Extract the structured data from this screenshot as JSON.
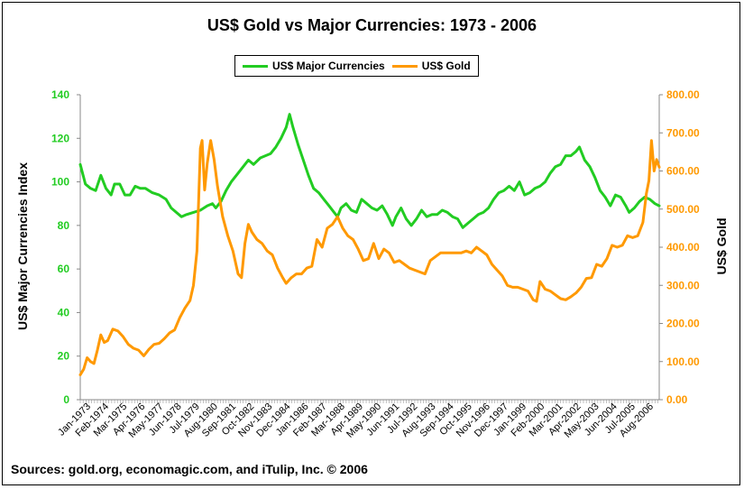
{
  "chart_data": {
    "type": "line",
    "title": "US$ Gold vs Major Currencies: 1973 - 2006",
    "source": "Sources: gold.org, economagic.com, and iTulip, Inc. © 2006",
    "y_left": {
      "label": "US$ Major Currencies Index",
      "range": [
        0,
        140
      ],
      "ticks": [
        "0",
        "20",
        "40",
        "60",
        "80",
        "100",
        "120",
        "140"
      ],
      "color": "#22cc22"
    },
    "y_right": {
      "label": "US$ Gold",
      "range": [
        0,
        800
      ],
      "ticks": [
        "0.00",
        "100.00",
        "200.00",
        "300.00",
        "400.00",
        "500.00",
        "600.00",
        "700.00",
        "800.00"
      ],
      "color": "#ff9900"
    },
    "x_ticks": [
      "Jan-1973",
      "Feb-1974",
      "Mar-1975",
      "Apr-1976",
      "May-1977",
      "Jun-1978",
      "Jul-1979",
      "Aug-1980",
      "Sep-1981",
      "Oct-1982",
      "Nov-1983",
      "Dec-1984",
      "Jan-1986",
      "Feb-1987",
      "Mar-1988",
      "Apr-1989",
      "May-1990",
      "Jun-1991",
      "Jul-1992",
      "Aug-1993",
      "Sep-1994",
      "Oct-1995",
      "Nov-1996",
      "Dec-1997",
      "Jan-1999",
      "Feb-2000",
      "Mar-2001",
      "Apr-2002",
      "May-2003",
      "Jun-2004",
      "Jul-2005",
      "Aug-2006"
    ],
    "x_range": [
      1973.0,
      2006.75
    ],
    "grid": false,
    "legend": "top-center",
    "series": [
      {
        "name": "US$ Major Currencies",
        "axis": "left",
        "color": "#22cc22",
        "points": [
          [
            1973.0,
            108
          ],
          [
            1973.3,
            99
          ],
          [
            1973.6,
            97
          ],
          [
            1973.9,
            96
          ],
          [
            1974.2,
            103
          ],
          [
            1974.5,
            97
          ],
          [
            1974.8,
            94
          ],
          [
            1975.0,
            99
          ],
          [
            1975.3,
            99
          ],
          [
            1975.6,
            94
          ],
          [
            1975.9,
            94
          ],
          [
            1976.2,
            98
          ],
          [
            1976.5,
            97
          ],
          [
            1976.8,
            97
          ],
          [
            1977.2,
            95
          ],
          [
            1977.6,
            94
          ],
          [
            1978.0,
            92
          ],
          [
            1978.3,
            88
          ],
          [
            1978.6,
            86
          ],
          [
            1978.9,
            84
          ],
          [
            1979.2,
            85
          ],
          [
            1979.6,
            86
          ],
          [
            1980.0,
            87
          ],
          [
            1980.4,
            89
          ],
          [
            1980.7,
            90
          ],
          [
            1980.9,
            88
          ],
          [
            1981.2,
            91
          ],
          [
            1981.5,
            96
          ],
          [
            1981.8,
            100
          ],
          [
            1982.2,
            104
          ],
          [
            1982.5,
            107
          ],
          [
            1982.8,
            110
          ],
          [
            1983.1,
            108
          ],
          [
            1983.5,
            111
          ],
          [
            1983.8,
            112
          ],
          [
            1984.1,
            113
          ],
          [
            1984.4,
            116
          ],
          [
            1984.7,
            120
          ],
          [
            1985.0,
            125
          ],
          [
            1985.2,
            131
          ],
          [
            1985.4,
            125
          ],
          [
            1985.7,
            117
          ],
          [
            1986.0,
            110
          ],
          [
            1986.3,
            103
          ],
          [
            1986.6,
            97
          ],
          [
            1986.9,
            95
          ],
          [
            1987.2,
            92
          ],
          [
            1987.5,
            89
          ],
          [
            1987.8,
            86
          ],
          [
            1988.0,
            84
          ],
          [
            1988.2,
            88
          ],
          [
            1988.5,
            90
          ],
          [
            1988.8,
            87
          ],
          [
            1989.1,
            86
          ],
          [
            1989.4,
            92
          ],
          [
            1989.7,
            90
          ],
          [
            1990.0,
            88
          ],
          [
            1990.3,
            87
          ],
          [
            1990.6,
            89
          ],
          [
            1990.9,
            85
          ],
          [
            1991.2,
            80
          ],
          [
            1991.4,
            84
          ],
          [
            1991.7,
            88
          ],
          [
            1992.0,
            83
          ],
          [
            1992.3,
            80
          ],
          [
            1992.6,
            83
          ],
          [
            1992.9,
            87
          ],
          [
            1993.2,
            84
          ],
          [
            1993.5,
            85
          ],
          [
            1993.8,
            85
          ],
          [
            1994.1,
            87
          ],
          [
            1994.4,
            86
          ],
          [
            1994.7,
            84
          ],
          [
            1995.0,
            83
          ],
          [
            1995.3,
            79
          ],
          [
            1995.6,
            81
          ],
          [
            1995.9,
            83
          ],
          [
            1996.2,
            85
          ],
          [
            1996.5,
            86
          ],
          [
            1996.8,
            88
          ],
          [
            1997.1,
            92
          ],
          [
            1997.4,
            95
          ],
          [
            1997.7,
            96
          ],
          [
            1998.0,
            98
          ],
          [
            1998.3,
            96
          ],
          [
            1998.6,
            100
          ],
          [
            1998.9,
            94
          ],
          [
            1999.2,
            95
          ],
          [
            1999.5,
            97
          ],
          [
            1999.8,
            98
          ],
          [
            2000.1,
            100
          ],
          [
            2000.4,
            104
          ],
          [
            2000.7,
            107
          ],
          [
            2001.0,
            108
          ],
          [
            2001.3,
            112
          ],
          [
            2001.6,
            112
          ],
          [
            2001.9,
            114
          ],
          [
            2002.1,
            116
          ],
          [
            2002.4,
            110
          ],
          [
            2002.7,
            107
          ],
          [
            2003.0,
            102
          ],
          [
            2003.3,
            96
          ],
          [
            2003.6,
            93
          ],
          [
            2003.9,
            89
          ],
          [
            2004.2,
            94
          ],
          [
            2004.5,
            93
          ],
          [
            2004.8,
            89
          ],
          [
            2005.0,
            86
          ],
          [
            2005.3,
            88
          ],
          [
            2005.6,
            91
          ],
          [
            2005.9,
            93
          ],
          [
            2006.2,
            92
          ],
          [
            2006.5,
            90
          ],
          [
            2006.75,
            89
          ]
        ]
      },
      {
        "name": "US$ Gold",
        "axis": "right",
        "color": "#ff9900",
        "points": [
          [
            1973.0,
            65
          ],
          [
            1973.2,
            80
          ],
          [
            1973.4,
            110
          ],
          [
            1973.6,
            100
          ],
          [
            1973.8,
            95
          ],
          [
            1974.0,
            130
          ],
          [
            1974.2,
            170
          ],
          [
            1974.4,
            150
          ],
          [
            1974.6,
            155
          ],
          [
            1974.9,
            185
          ],
          [
            1975.2,
            180
          ],
          [
            1975.5,
            165
          ],
          [
            1975.8,
            145
          ],
          [
            1976.1,
            135
          ],
          [
            1976.4,
            130
          ],
          [
            1976.7,
            115
          ],
          [
            1977.0,
            132
          ],
          [
            1977.3,
            145
          ],
          [
            1977.6,
            148
          ],
          [
            1977.9,
            160
          ],
          [
            1978.2,
            175
          ],
          [
            1978.5,
            183
          ],
          [
            1978.8,
            215
          ],
          [
            1979.1,
            240
          ],
          [
            1979.4,
            260
          ],
          [
            1979.6,
            300
          ],
          [
            1979.8,
            390
          ],
          [
            1980.0,
            660
          ],
          [
            1980.1,
            680
          ],
          [
            1980.25,
            550
          ],
          [
            1980.4,
            620
          ],
          [
            1980.6,
            680
          ],
          [
            1980.8,
            630
          ],
          [
            1981.0,
            560
          ],
          [
            1981.3,
            480
          ],
          [
            1981.6,
            430
          ],
          [
            1981.9,
            390
          ],
          [
            1982.2,
            330
          ],
          [
            1982.4,
            320
          ],
          [
            1982.6,
            410
          ],
          [
            1982.8,
            460
          ],
          [
            1983.0,
            440
          ],
          [
            1983.3,
            420
          ],
          [
            1983.6,
            410
          ],
          [
            1983.9,
            390
          ],
          [
            1984.2,
            380
          ],
          [
            1984.5,
            345
          ],
          [
            1984.8,
            320
          ],
          [
            1985.0,
            305
          ],
          [
            1985.3,
            320
          ],
          [
            1985.6,
            330
          ],
          [
            1985.9,
            330
          ],
          [
            1986.2,
            345
          ],
          [
            1986.5,
            350
          ],
          [
            1986.8,
            420
          ],
          [
            1987.1,
            400
          ],
          [
            1987.4,
            450
          ],
          [
            1987.7,
            460
          ],
          [
            1988.0,
            480
          ],
          [
            1988.3,
            450
          ],
          [
            1988.6,
            430
          ],
          [
            1988.9,
            420
          ],
          [
            1989.2,
            395
          ],
          [
            1989.5,
            365
          ],
          [
            1989.8,
            370
          ],
          [
            1990.1,
            410
          ],
          [
            1990.4,
            370
          ],
          [
            1990.7,
            395
          ],
          [
            1991.0,
            385
          ],
          [
            1991.3,
            360
          ],
          [
            1991.6,
            365
          ],
          [
            1991.9,
            355
          ],
          [
            1992.2,
            345
          ],
          [
            1992.5,
            340
          ],
          [
            1992.8,
            335
          ],
          [
            1993.1,
            330
          ],
          [
            1993.4,
            365
          ],
          [
            1993.7,
            375
          ],
          [
            1994.0,
            385
          ],
          [
            1994.3,
            385
          ],
          [
            1994.6,
            385
          ],
          [
            1994.9,
            385
          ],
          [
            1995.2,
            385
          ],
          [
            1995.5,
            390
          ],
          [
            1995.8,
            385
          ],
          [
            1996.1,
            400
          ],
          [
            1996.4,
            390
          ],
          [
            1996.7,
            380
          ],
          [
            1997.0,
            355
          ],
          [
            1997.3,
            340
          ],
          [
            1997.6,
            325
          ],
          [
            1997.9,
            300
          ],
          [
            1998.2,
            295
          ],
          [
            1998.5,
            295
          ],
          [
            1998.8,
            290
          ],
          [
            1999.1,
            285
          ],
          [
            1999.4,
            262
          ],
          [
            1999.6,
            258
          ],
          [
            1999.8,
            310
          ],
          [
            2000.1,
            290
          ],
          [
            2000.4,
            285
          ],
          [
            2000.7,
            275
          ],
          [
            2001.0,
            265
          ],
          [
            2001.3,
            262
          ],
          [
            2001.6,
            270
          ],
          [
            2001.9,
            280
          ],
          [
            2002.2,
            295
          ],
          [
            2002.5,
            318
          ],
          [
            2002.8,
            320
          ],
          [
            2003.1,
            355
          ],
          [
            2003.4,
            350
          ],
          [
            2003.7,
            370
          ],
          [
            2004.0,
            405
          ],
          [
            2004.3,
            400
          ],
          [
            2004.6,
            405
          ],
          [
            2004.9,
            430
          ],
          [
            2005.2,
            425
          ],
          [
            2005.5,
            430
          ],
          [
            2005.8,
            465
          ],
          [
            2006.0,
            540
          ],
          [
            2006.15,
            575
          ],
          [
            2006.3,
            680
          ],
          [
            2006.45,
            600
          ],
          [
            2006.6,
            630
          ],
          [
            2006.75,
            610
          ]
        ]
      }
    ]
  }
}
